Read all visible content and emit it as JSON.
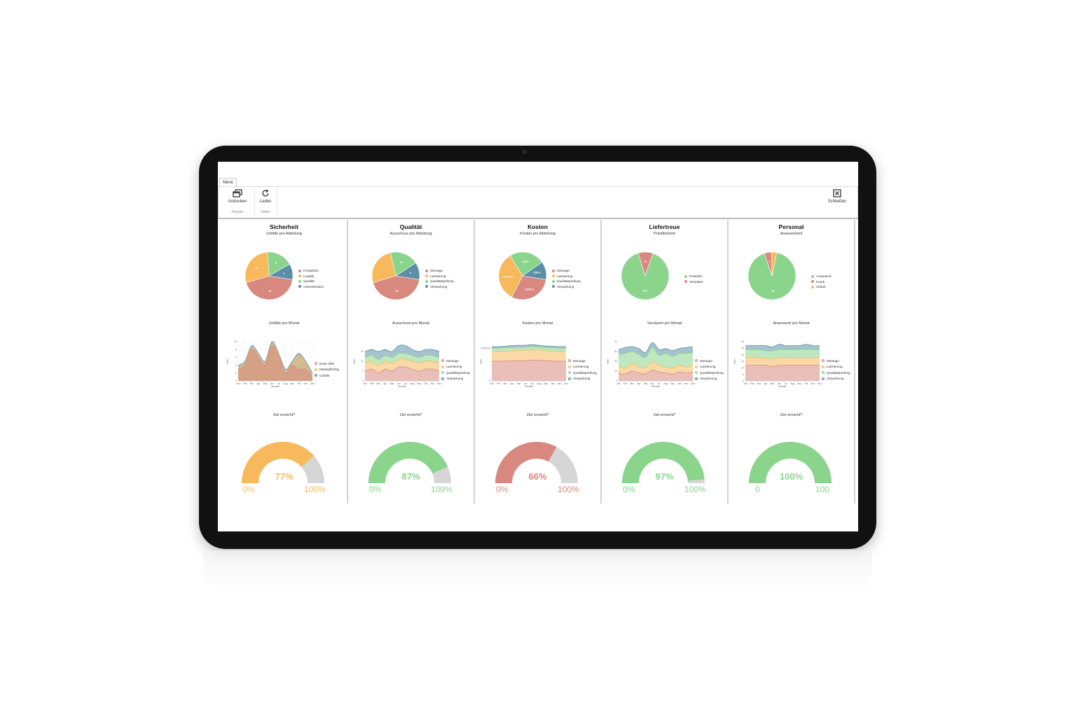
{
  "ribbon": {
    "tab": "Menü",
    "buttons": [
      {
        "label": "Andocken",
        "icon": "windows-icon"
      },
      {
        "label": "Laden",
        "icon": "refresh-icon"
      },
      {
        "label": "Schließen",
        "icon": "close-box-icon"
      }
    ],
    "groups": [
      "Fenster",
      "Daten"
    ]
  },
  "colors": {
    "red": "#d98880",
    "orange": "#f7b95c",
    "green": "#8ad48c",
    "blue": "#5b8fa8",
    "gray": "#d6d6d6"
  },
  "panels": [
    {
      "title": "Sicherheit",
      "pie_title": "Unfälle pro Abteilung",
      "pie": {
        "labels": [
          "Produktion",
          "Logistik",
          "Qualität",
          "Administration"
        ],
        "values": [
          12,
          8,
          5,
          3
        ],
        "value_labels": [
          "12",
          "8",
          "5",
          "3"
        ]
      },
      "area_title": "Unfälle pro Monat",
      "area": {
        "legend": [
          "Erste Hilfe",
          "Meldepflichtig",
          "Unfälle"
        ],
        "y_ticks": [
          "0",
          "2",
          "4",
          "6",
          "8",
          "10"
        ],
        "ylabel": "Wert",
        "xlabel": "Monate"
      },
      "gauge_title": "Ziel erreicht?",
      "gauge": {
        "value": 77,
        "value_label": "77%",
        "min_label": "0%",
        "max_label": "100%",
        "color": "#f7b95c"
      }
    },
    {
      "title": "Qualität",
      "pie_title": "Ausschuss pro Abteilung",
      "pie": {
        "labels": [
          "Montage",
          "Lackierung",
          "Qualitätsprüfung",
          "Verpackung"
        ],
        "values": [
          33,
          20,
          15,
          9
        ],
        "value_labels": [
          "33",
          "",
          "15",
          "9"
        ]
      },
      "area_title": "Ausschuss pro Monat",
      "area": {
        "legend": [
          "Montage",
          "Lackierung",
          "Qualitätsprüfung",
          "Verpackung"
        ],
        "y_ticks": [
          "0",
          "5",
          "10",
          "15"
        ],
        "ylabel": "Wert",
        "xlabel": "Monate"
      },
      "gauge_title": "Ziel erreicht?",
      "gauge": {
        "value": 87,
        "value_label": "87%",
        "min_label": "0%",
        "max_label": "100%",
        "color": "#8ad48c"
      }
    },
    {
      "title": "Kosten",
      "pie_title": "Kosten pro Abteilung",
      "pie": {
        "labels": [
          "Montage",
          "Lackierung",
          "Qualitätsprüfung",
          "Verpackung"
        ],
        "values": [
          12500.3,
          14000.75,
          10000,
          5100.3
        ],
        "value_labels": [
          "12500.3",
          "14000.75",
          "10000",
          "5100.3"
        ]
      },
      "area_title": "Kosten pro Monat",
      "area": {
        "legend": [
          "Montage",
          "Lackierung",
          "Qualitätsprüfung",
          "Verpackung"
        ],
        "y_ticks": [
          "0",
          "1000000"
        ],
        "ylabel": "Wert",
        "xlabel": "Monate"
      },
      "gauge_title": "Ziel erreicht?",
      "gauge": {
        "value": 66,
        "value_label": "66%",
        "min_label": "0%",
        "max_label": "100%",
        "color": "#d98880"
      }
    },
    {
      "title": "Liefertreue",
      "pie_title": "Pünktlichkeit",
      "pie": {
        "labels": [
          "Pünktlich",
          "Verspätet"
        ],
        "values": [
          100,
          11
        ],
        "value_labels": [
          "100",
          "11"
        ]
      },
      "area_title": "Versäumt pro Monat",
      "area": {
        "legend": [
          "Montage",
          "Lackierung",
          "Qualitätsprüfung",
          "Verpackung"
        ],
        "y_ticks": [
          "0",
          "10",
          "20",
          "30",
          "40"
        ],
        "ylabel": "Wert",
        "xlabel": "Monate"
      },
      "gauge_title": "Ziel erreicht?",
      "gauge": {
        "value": 97,
        "value_label": "97%",
        "min_label": "0%",
        "max_label": "100%",
        "color": "#8ad48c"
      }
    },
    {
      "title": "Personal",
      "pie_title": "Anwesenheit",
      "pie": {
        "labels": [
          "Anwesend",
          "Krank",
          "Urlaub"
        ],
        "values": [
          38,
          2,
          1.5
        ],
        "value_labels": [
          "38",
          "2",
          ""
        ]
      },
      "area_title": "Anwesend pro Monat",
      "area": {
        "legend": [
          "Montage",
          "Lackierung",
          "Qualitätsprüfung",
          "Verpackung"
        ],
        "y_ticks": [
          "0",
          "5",
          "10",
          "15",
          "20",
          "25",
          "30"
        ],
        "ylabel": "Wert",
        "xlabel": "Monate"
      },
      "gauge_title": "Ziel erreicht?",
      "gauge": {
        "value": 100,
        "value_label": "100%",
        "min_label": "0",
        "max_label": "100",
        "color": "#8ad48c"
      }
    }
  ],
  "months": [
    "Jan",
    "Feb",
    "Mrz",
    "Apr",
    "Mai",
    "Jun",
    "Jul",
    "Aug",
    "Sep",
    "Okt",
    "Nov",
    "Dez"
  ],
  "chart_data": [
    {
      "type": "pie",
      "title": "Unfälle pro Abteilung",
      "categories": [
        "Produktion",
        "Logistik",
        "Qualität",
        "Administration"
      ],
      "values": [
        12,
        8,
        5,
        3
      ]
    },
    {
      "type": "area",
      "title": "Unfälle pro Monat",
      "x": [
        "Jan",
        "Feb",
        "Mrz",
        "Apr",
        "Mai",
        "Jun",
        "Jul",
        "Aug",
        "Sep",
        "Okt",
        "Nov",
        "Dez"
      ],
      "ylabel": "Wert",
      "xlabel": "Monate",
      "ylim": [
        0,
        10
      ],
      "series": [
        {
          "name": "Erste Hilfe",
          "values": [
            3,
            4,
            8,
            6,
            4,
            9,
            6,
            2,
            4,
            3,
            3,
            1
          ]
        },
        {
          "name": "Meldepflichtig",
          "values": [
            3.5,
            4.5,
            8.5,
            6.5,
            4.5,
            9.5,
            6.5,
            2.5,
            4.5,
            6.5,
            4.5,
            1.5
          ]
        },
        {
          "name": "Unfälle",
          "values": [
            4,
            5,
            9,
            7,
            5,
            10,
            7,
            3,
            5,
            7,
            5,
            2
          ]
        }
      ]
    },
    {
      "type": "pie",
      "title": "Ausschuss pro Abteilung",
      "categories": [
        "Montage",
        "Lackierung",
        "Qualitätsprüfung",
        "Verpackung"
      ],
      "values": [
        33,
        20,
        15,
        9
      ]
    },
    {
      "type": "area",
      "title": "Ausschuss pro Monat",
      "x": [
        "Jan",
        "Feb",
        "Mrz",
        "Apr",
        "Mai",
        "Jun",
        "Jul",
        "Aug",
        "Sep",
        "Okt",
        "Nov",
        "Dez"
      ],
      "ylabel": "Wert",
      "xlabel": "Monate",
      "ylim": [
        0,
        20
      ],
      "series": [
        {
          "name": "Montage",
          "values": [
            5,
            6,
            4,
            6,
            5,
            7,
            7,
            6,
            5,
            6,
            6,
            5
          ]
        },
        {
          "name": "Lackierung",
          "values": [
            4,
            4,
            4,
            4,
            4,
            4,
            4,
            4,
            4,
            4,
            4,
            4
          ]
        },
        {
          "name": "Qualitätsprüfung",
          "values": [
            3,
            3,
            3,
            3,
            3,
            3,
            3,
            3,
            3,
            3,
            3,
            3
          ]
        },
        {
          "name": "Verpackung",
          "values": [
            3,
            3,
            4,
            3,
            3,
            4,
            4,
            3,
            3,
            3,
            3,
            3
          ]
        }
      ]
    },
    {
      "type": "pie",
      "title": "Kosten pro Abteilung",
      "categories": [
        "Montage",
        "Lackierung",
        "Qualitätsprüfung",
        "Verpackung"
      ],
      "values": [
        12500.3,
        14000.75,
        10000,
        5100.3
      ]
    },
    {
      "type": "area",
      "title": "Kosten pro Monat",
      "x": [
        "Jan",
        "Feb",
        "Mrz",
        "Apr",
        "Mai",
        "Jun",
        "Jul",
        "Aug",
        "Sep",
        "Okt",
        "Nov",
        "Dez"
      ],
      "ylabel": "Wert",
      "xlabel": "Monate",
      "ylim": [
        0,
        1200000
      ],
      "series": [
        {
          "name": "Montage",
          "values": [
            600000,
            600000,
            610000,
            610000,
            620000,
            620000,
            640000,
            630000,
            620000,
            610000,
            600000,
            600000
          ]
        },
        {
          "name": "Lackierung",
          "values": [
            300000,
            300000,
            300000,
            310000,
            310000,
            310000,
            310000,
            310000,
            300000,
            300000,
            300000,
            300000
          ]
        },
        {
          "name": "Qualitätsprüfung",
          "values": [
            100000,
            100000,
            100000,
            100000,
            100000,
            100000,
            100000,
            100000,
            100000,
            100000,
            100000,
            100000
          ]
        },
        {
          "name": "Verpackung",
          "values": [
            50000,
            50000,
            50000,
            60000,
            60000,
            60000,
            60000,
            50000,
            50000,
            50000,
            50000,
            50000
          ]
        }
      ]
    },
    {
      "type": "pie",
      "title": "Pünktlichkeit",
      "categories": [
        "Pünktlich",
        "Verspätet"
      ],
      "values": [
        100,
        11
      ]
    },
    {
      "type": "area",
      "title": "Versäumt pro Monat",
      "x": [
        "Jan",
        "Feb",
        "Mrz",
        "Apr",
        "Mai",
        "Jun",
        "Jul",
        "Aug",
        "Sep",
        "Okt",
        "Nov",
        "Dez"
      ],
      "ylabel": "Wert",
      "xlabel": "Monate",
      "ylim": [
        0,
        40
      ],
      "series": [
        {
          "name": "Montage",
          "values": [
            8,
            7,
            10,
            8,
            7,
            11,
            9,
            8,
            7,
            9,
            8,
            9
          ]
        },
        {
          "name": "Lackierung",
          "values": [
            7,
            6,
            8,
            6,
            7,
            8,
            7,
            6,
            6,
            7,
            6,
            7
          ]
        },
        {
          "name": "Qualitätsprüfung",
          "values": [
            12,
            15,
            12,
            13,
            10,
            15,
            10,
            14,
            12,
            12,
            14,
            13
          ]
        },
        {
          "name": "Verpackung",
          "values": [
            5,
            6,
            5,
            6,
            5,
            5,
            6,
            5,
            6,
            5,
            6,
            6
          ]
        }
      ]
    },
    {
      "type": "pie",
      "title": "Anwesenheit",
      "categories": [
        "Anwesend",
        "Krank",
        "Urlaub"
      ],
      "values": [
        38,
        2,
        1.5
      ]
    },
    {
      "type": "area",
      "title": "Anwesend pro Monat",
      "x": [
        "Jan",
        "Feb",
        "Mrz",
        "Apr",
        "Mai",
        "Jun",
        "Jul",
        "Aug",
        "Sep",
        "Okt",
        "Nov",
        "Dez"
      ],
      "ylabel": "Wert",
      "xlabel": "Monate",
      "ylim": [
        0,
        30
      ],
      "series": [
        {
          "name": "Montage",
          "values": [
            12,
            12,
            12,
            12,
            11,
            12,
            12,
            12,
            12,
            12,
            12,
            12
          ]
        },
        {
          "name": "Lackierung",
          "values": [
            6,
            6,
            6,
            5,
            6,
            6,
            6,
            6,
            6,
            6,
            6,
            6
          ]
        },
        {
          "name": "Qualitätsprüfung",
          "values": [
            6,
            6,
            6,
            6,
            6,
            6,
            6,
            6,
            6,
            6,
            6,
            6
          ]
        },
        {
          "name": "Verpackung",
          "values": [
            3,
            3,
            3,
            4,
            3,
            4,
            3,
            3,
            3,
            4,
            3,
            3
          ]
        }
      ]
    },
    {
      "type": "gauge",
      "title": "Ziel erreicht?",
      "values": [
        77,
        87,
        66,
        97,
        100
      ]
    }
  ]
}
